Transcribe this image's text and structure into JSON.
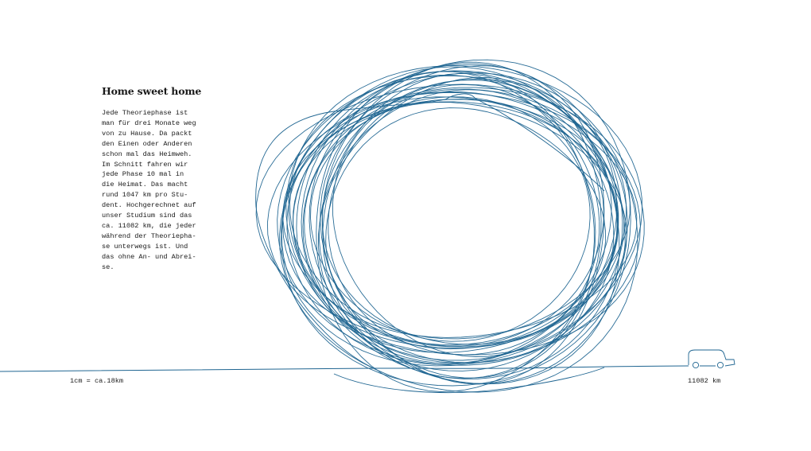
{
  "article": {
    "title": "Home sweet home",
    "paragraph_lines": [
      "Jede Theoriephase ist",
      "man für drei Monate weg",
      "von zu Hause. Da packt",
      "den Einen oder Anderen",
      "schon mal das Heimweh.",
      "Im Schnitt fahren wir",
      "jede Phase 10 mal in",
      "die Heimat. Das macht",
      "rund 1047 km pro Stu-",
      "dent. Hochgerechnet auf",
      "unser Studium sind das",
      "ca. 11082 km, die jeder",
      "während der Theoriepha-",
      "se unterwegs ist. Und",
      "das ohne An- und Abrei-",
      "se."
    ]
  },
  "scale": {
    "label": "1cm = ca.18km"
  },
  "distance": {
    "label": "11082 km"
  },
  "colors": {
    "line": "#1f6591",
    "text": "#1a1a1a",
    "background": "#ffffff"
  },
  "icons": {
    "vehicle": "car-icon"
  }
}
